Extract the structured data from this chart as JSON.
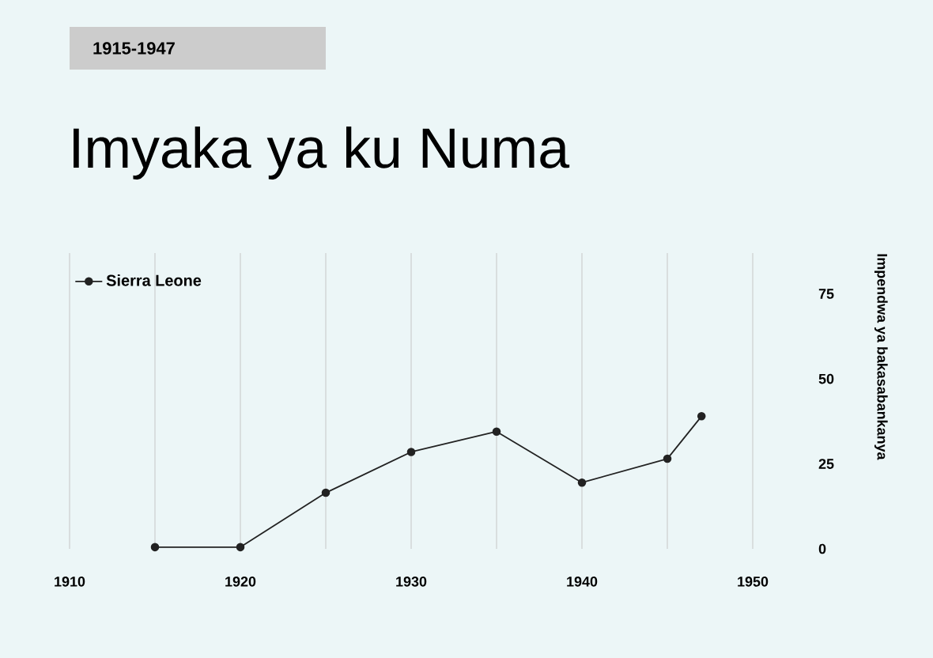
{
  "chart_data": {
    "type": "line",
    "title": "Imyaka ya ku Numa",
    "subtitle": "1915-1947",
    "ylabel": "Impendwa ya bakasabankanya",
    "x": [
      1915,
      1920,
      1925,
      1930,
      1935,
      1940,
      1945,
      1947
    ],
    "series": [
      {
        "name": "Sierra Leone",
        "color": "#222222",
        "values": [
          0.5,
          0.5,
          16.5,
          28.5,
          34.5,
          19.5,
          26.5,
          39
        ]
      }
    ],
    "xlim": [
      1910,
      1950
    ],
    "ylim": [
      0,
      87
    ],
    "xticks": [
      1910,
      1920,
      1930,
      1940,
      1950
    ],
    "yticks": [
      0,
      25,
      50,
      75
    ],
    "grid": "x",
    "legend": "top left",
    "marker": "circle",
    "line_style": "solid"
  }
}
